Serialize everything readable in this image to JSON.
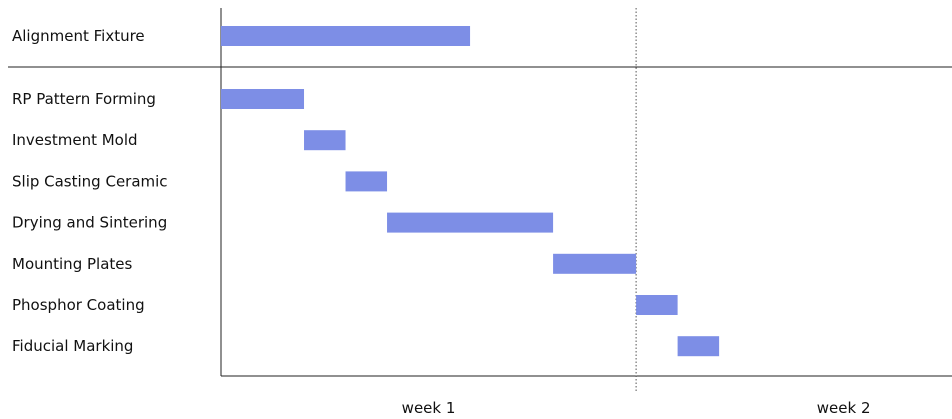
{
  "chart_data": {
    "type": "gantt",
    "title": "",
    "xlabel": "",
    "ylabel": "",
    "x_unit": "day",
    "xlim": [
      0,
      14
    ],
    "x_ticks": [
      {
        "label": "week 1",
        "at": 3.5
      },
      {
        "label": "week 2",
        "at": 10.5
      }
    ],
    "week_divider_at": 7,
    "bar_color": "#7d8ee6",
    "summary_tasks": [
      {
        "name": "Alignment Fixture",
        "start": 0,
        "end": 4.2
      }
    ],
    "tasks": [
      {
        "name": "RP Pattern Forming",
        "start": 0,
        "end": 1.4
      },
      {
        "name": "Investment Mold",
        "start": 1.4,
        "end": 2.1
      },
      {
        "name": "Slip Casting Ceramic",
        "start": 2.1,
        "end": 2.8
      },
      {
        "name": "Drying and Sintering",
        "start": 2.8,
        "end": 5.6
      },
      {
        "name": "Mounting Plates",
        "start": 5.6,
        "end": 7.0
      },
      {
        "name": "Phosphor Coating",
        "start": 7.0,
        "end": 7.7
      },
      {
        "name": "Fiducial Marking",
        "start": 7.7,
        "end": 8.4
      }
    ]
  }
}
